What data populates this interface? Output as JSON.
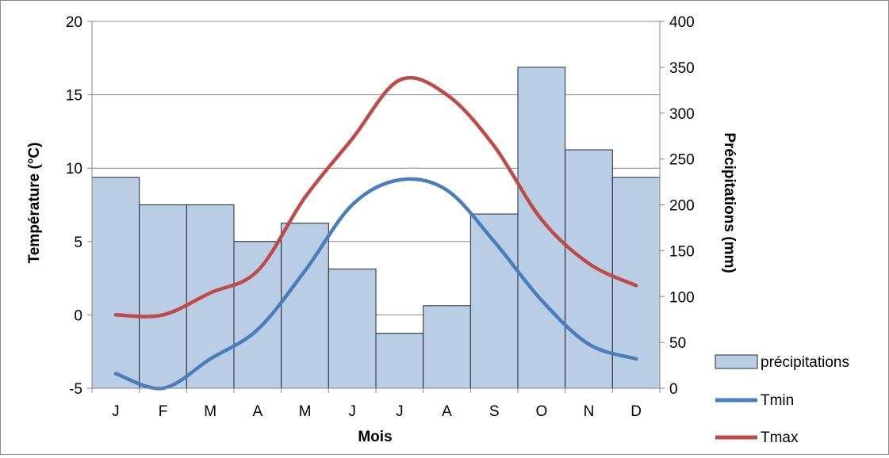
{
  "chart_data": {
    "type": "bar",
    "categories": [
      "J",
      "F",
      "M",
      "A",
      "M",
      "J",
      "J",
      "A",
      "S",
      "O",
      "N",
      "D"
    ],
    "xlabel": "Mois",
    "ylabel_left": "Température (°C)",
    "ylabel_right": "Précipitations (mm)",
    "ylim_left": [
      -5,
      20
    ],
    "yticks_left": [
      -5,
      0,
      5,
      10,
      15,
      20
    ],
    "ylim_right": [
      0,
      400
    ],
    "yticks_right": [
      0,
      50,
      100,
      150,
      200,
      250,
      300,
      350,
      400
    ],
    "grid": "horizontal",
    "legend_position": "bottom-right",
    "series": [
      {
        "name": "précipitations",
        "kind": "bar",
        "axis": "right",
        "color": "#b9cde5",
        "edge_color": "#1f2a3a",
        "values": [
          230,
          200,
          200,
          160,
          180,
          130,
          60,
          90,
          190,
          350,
          260,
          230
        ]
      },
      {
        "name": "Tmin",
        "kind": "line",
        "axis": "left",
        "color": "#4a7ebb",
        "values": [
          -4,
          -5,
          -3,
          -1,
          3,
          7.5,
          9.2,
          8.5,
          5,
          1,
          -2,
          -3
        ]
      },
      {
        "name": "Tmax",
        "kind": "line",
        "axis": "left",
        "color": "#be4b48",
        "values": [
          0,
          0,
          1.5,
          3,
          8,
          12,
          16,
          15,
          11.5,
          6.5,
          3.5,
          2
        ]
      }
    ]
  }
}
